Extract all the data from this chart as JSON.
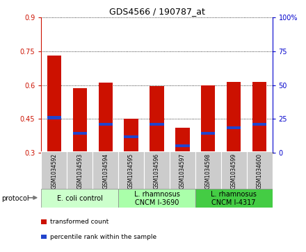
{
  "title": "GDS4566 / 190787_at",
  "samples": [
    "GSM1034592",
    "GSM1034593",
    "GSM1034594",
    "GSM1034595",
    "GSM1034596",
    "GSM1034597",
    "GSM1034598",
    "GSM1034599",
    "GSM1034600"
  ],
  "transformed_count": [
    0.73,
    0.585,
    0.61,
    0.45,
    0.595,
    0.41,
    0.6,
    0.615,
    0.615
  ],
  "percentile_rank": [
    0.455,
    0.385,
    0.425,
    0.37,
    0.425,
    0.33,
    0.385,
    0.41,
    0.425
  ],
  "bar_bottom": 0.3,
  "ylim": [
    0.3,
    0.9
  ],
  "yticks": [
    0.3,
    0.45,
    0.6,
    0.75,
    0.9
  ],
  "ytick_labels_left": [
    "0.3",
    "0.45",
    "0.6",
    "0.75",
    "0.9"
  ],
  "yticks_right_vals": [
    0,
    25,
    50,
    75,
    100
  ],
  "ytick_labels_right": [
    "0",
    "25",
    "50",
    "75",
    "100%"
  ],
  "bar_color": "#cc1100",
  "percentile_color": "#2244cc",
  "bar_width": 0.55,
  "groups": [
    {
      "label": "E. coli control",
      "start": 0,
      "end": 3,
      "color": "#ccffcc"
    },
    {
      "label": "L. rhamnosus\nCNCM I-3690",
      "start": 3,
      "end": 6,
      "color": "#aaffaa"
    },
    {
      "label": "L. rhamnosus\nCNCM I-4317",
      "start": 6,
      "end": 9,
      "color": "#44cc44"
    }
  ],
  "group_border_color": "#888888",
  "protocol_label": "protocol",
  "legend_items": [
    {
      "label": "transformed count",
      "color": "#cc1100"
    },
    {
      "label": "percentile rank within the sample",
      "color": "#2244cc"
    }
  ],
  "left_axis_color": "#cc1100",
  "right_axis_color": "#0000cc",
  "sample_box_color": "#cccccc",
  "title_fontsize": 9,
  "tick_fontsize": 7,
  "sample_fontsize": 5.5,
  "group_fontsize": 7,
  "legend_fontsize": 6.5,
  "protocol_fontsize": 7
}
